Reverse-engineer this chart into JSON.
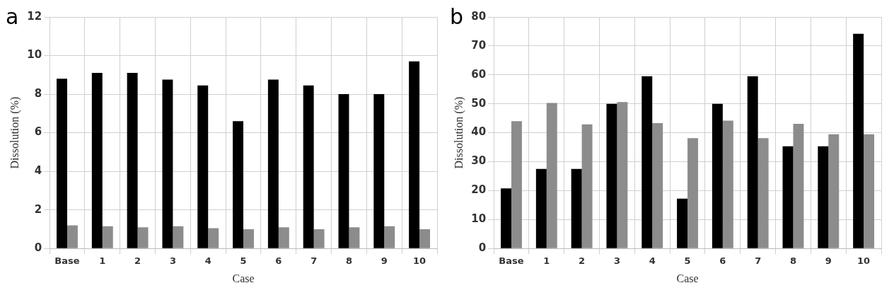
{
  "chart_data": [
    {
      "type": "bar",
      "title": "a",
      "xlabel": "Case",
      "ylabel": "Dissolution (%)",
      "categories": [
        "Base",
        "1",
        "2",
        "3",
        "4",
        "5",
        "6",
        "7",
        "8",
        "9",
        "10"
      ],
      "series": [
        {
          "color": "#000000",
          "values": [
            8.8,
            9.1,
            9.1,
            8.75,
            8.45,
            6.6,
            8.75,
            8.45,
            8.0,
            8.0,
            9.7
          ]
        },
        {
          "color": "#8c8c8c",
          "values": [
            1.2,
            1.15,
            1.1,
            1.15,
            1.05,
            1.0,
            1.1,
            1.0,
            1.1,
            1.15,
            1.0
          ]
        }
      ],
      "ylim": [
        0,
        12
      ],
      "yticks": [
        0,
        2,
        4,
        6,
        8,
        10,
        12
      ],
      "grid": true
    },
    {
      "type": "bar",
      "title": "b",
      "xlabel": "Case",
      "ylabel": "Dissolution (%)",
      "categories": [
        "Base",
        "1",
        "2",
        "3",
        "4",
        "5",
        "6",
        "7",
        "8",
        "9",
        "10"
      ],
      "series": [
        {
          "color": "#000000",
          "values": [
            20.8,
            27.5,
            27.5,
            50,
            59.5,
            17.2,
            50,
            59.5,
            35.3,
            35.3,
            74.2
          ]
        },
        {
          "color": "#8c8c8c",
          "values": [
            44,
            50.3,
            42.9,
            50.6,
            43.3,
            38.1,
            44.2,
            38.1,
            43.1,
            39.5,
            39.5
          ]
        }
      ],
      "ylim": [
        0,
        80
      ],
      "yticks": [
        0,
        10,
        20,
        30,
        40,
        50,
        60,
        70,
        80
      ],
      "grid": true
    }
  ]
}
